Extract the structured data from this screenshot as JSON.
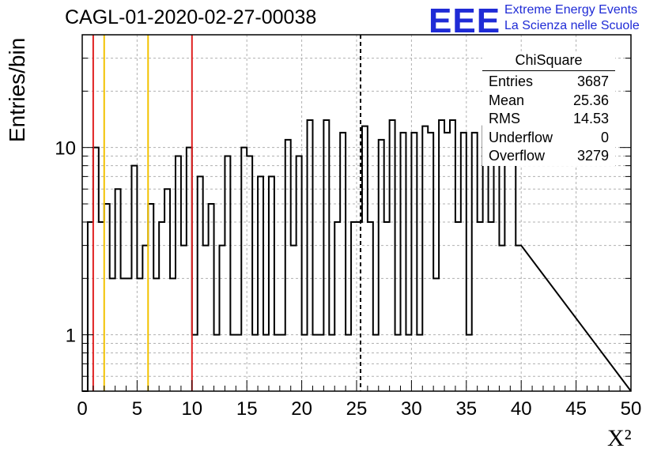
{
  "title": "CAGL-01-2020-02-27-00038",
  "logo": {
    "mark": "EEE",
    "line1": "Extreme Energy Events",
    "line2": "La Scienza nelle Scuole",
    "color": "#1f2bd6"
  },
  "stats": {
    "title": "ChiSquare",
    "rows": [
      {
        "label": "Entries",
        "value": "3687"
      },
      {
        "label": "Mean",
        "value": "25.36"
      },
      {
        "label": "RMS",
        "value": "14.53"
      },
      {
        "label": "Underflow",
        "value": "0"
      },
      {
        "label": "Overflow",
        "value": "3279"
      }
    ]
  },
  "chart_data": {
    "type": "histogram",
    "title": "CAGL-01-2020-02-27-00038",
    "xlabel": "X²",
    "ylabel": "Entries/bin",
    "xlim": [
      0,
      50
    ],
    "ylim": [
      0.5,
      40
    ],
    "log_y": true,
    "grid": true,
    "bin_width": 0.5,
    "x_ticks": [
      0,
      5,
      10,
      15,
      20,
      25,
      30,
      35,
      40,
      45,
      50
    ],
    "y_ticks": [
      1,
      10
    ],
    "values": [
      0,
      4,
      10,
      4,
      5,
      2,
      6,
      2,
      2,
      8,
      2,
      3,
      5,
      2,
      4,
      6,
      2,
      9,
      3,
      10,
      1,
      7,
      3,
      5,
      1,
      3,
      9,
      1,
      1,
      10,
      9,
      1,
      7,
      1,
      7,
      1,
      1,
      11,
      3,
      9,
      1,
      14,
      1,
      1,
      14,
      1,
      4,
      12,
      1,
      4,
      4,
      13,
      4,
      1,
      11,
      4,
      14,
      1,
      12,
      1,
      12,
      1,
      13,
      12,
      2,
      14,
      12,
      14,
      4,
      12,
      1,
      12,
      4,
      13,
      4,
      13,
      3,
      12,
      14,
      3
    ],
    "vlines": [
      {
        "x": 1,
        "color": "#e02020",
        "style": "solid"
      },
      {
        "x": 2,
        "color": "#f2c200",
        "style": "solid"
      },
      {
        "x": 6,
        "color": "#f2c200",
        "style": "solid"
      },
      {
        "x": 10,
        "color": "#e02020",
        "style": "solid"
      },
      {
        "x": 25.36,
        "color": "#000000",
        "style": "dashed"
      }
    ]
  }
}
